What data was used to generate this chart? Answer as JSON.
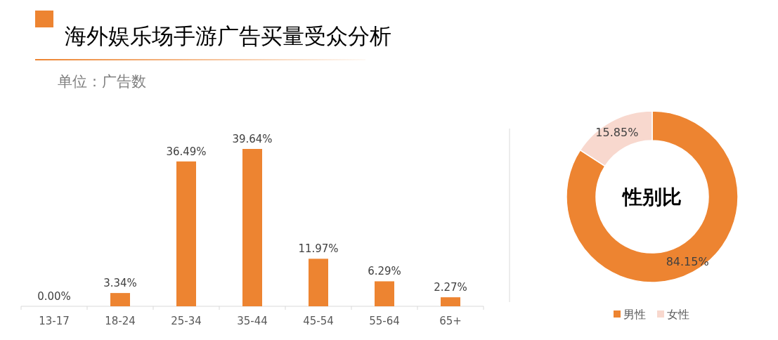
{
  "chart_data": [
    {
      "type": "bar",
      "title": "海外娱乐场手游广告买量受众分析",
      "subtitle": "单位：广告数",
      "categories": [
        "13-17",
        "18-24",
        "25-34",
        "35-44",
        "45-54",
        "55-64",
        "65+"
      ],
      "values": [
        0.0,
        3.34,
        36.49,
        39.64,
        11.97,
        6.29,
        2.27
      ],
      "value_labels": [
        "0.00%",
        "3.34%",
        "36.49%",
        "39.64%",
        "11.97%",
        "6.29%",
        "2.27%"
      ],
      "color": "#ed8431"
    },
    {
      "type": "donut",
      "title": "性别比",
      "categories": [
        "男性",
        "女性"
      ],
      "values": [
        84.15,
        15.85
      ],
      "value_labels": [
        "84.15%",
        "15.85%"
      ],
      "colors": [
        "#ed8431",
        "#f8d8ce"
      ],
      "legend": "bottom"
    }
  ]
}
